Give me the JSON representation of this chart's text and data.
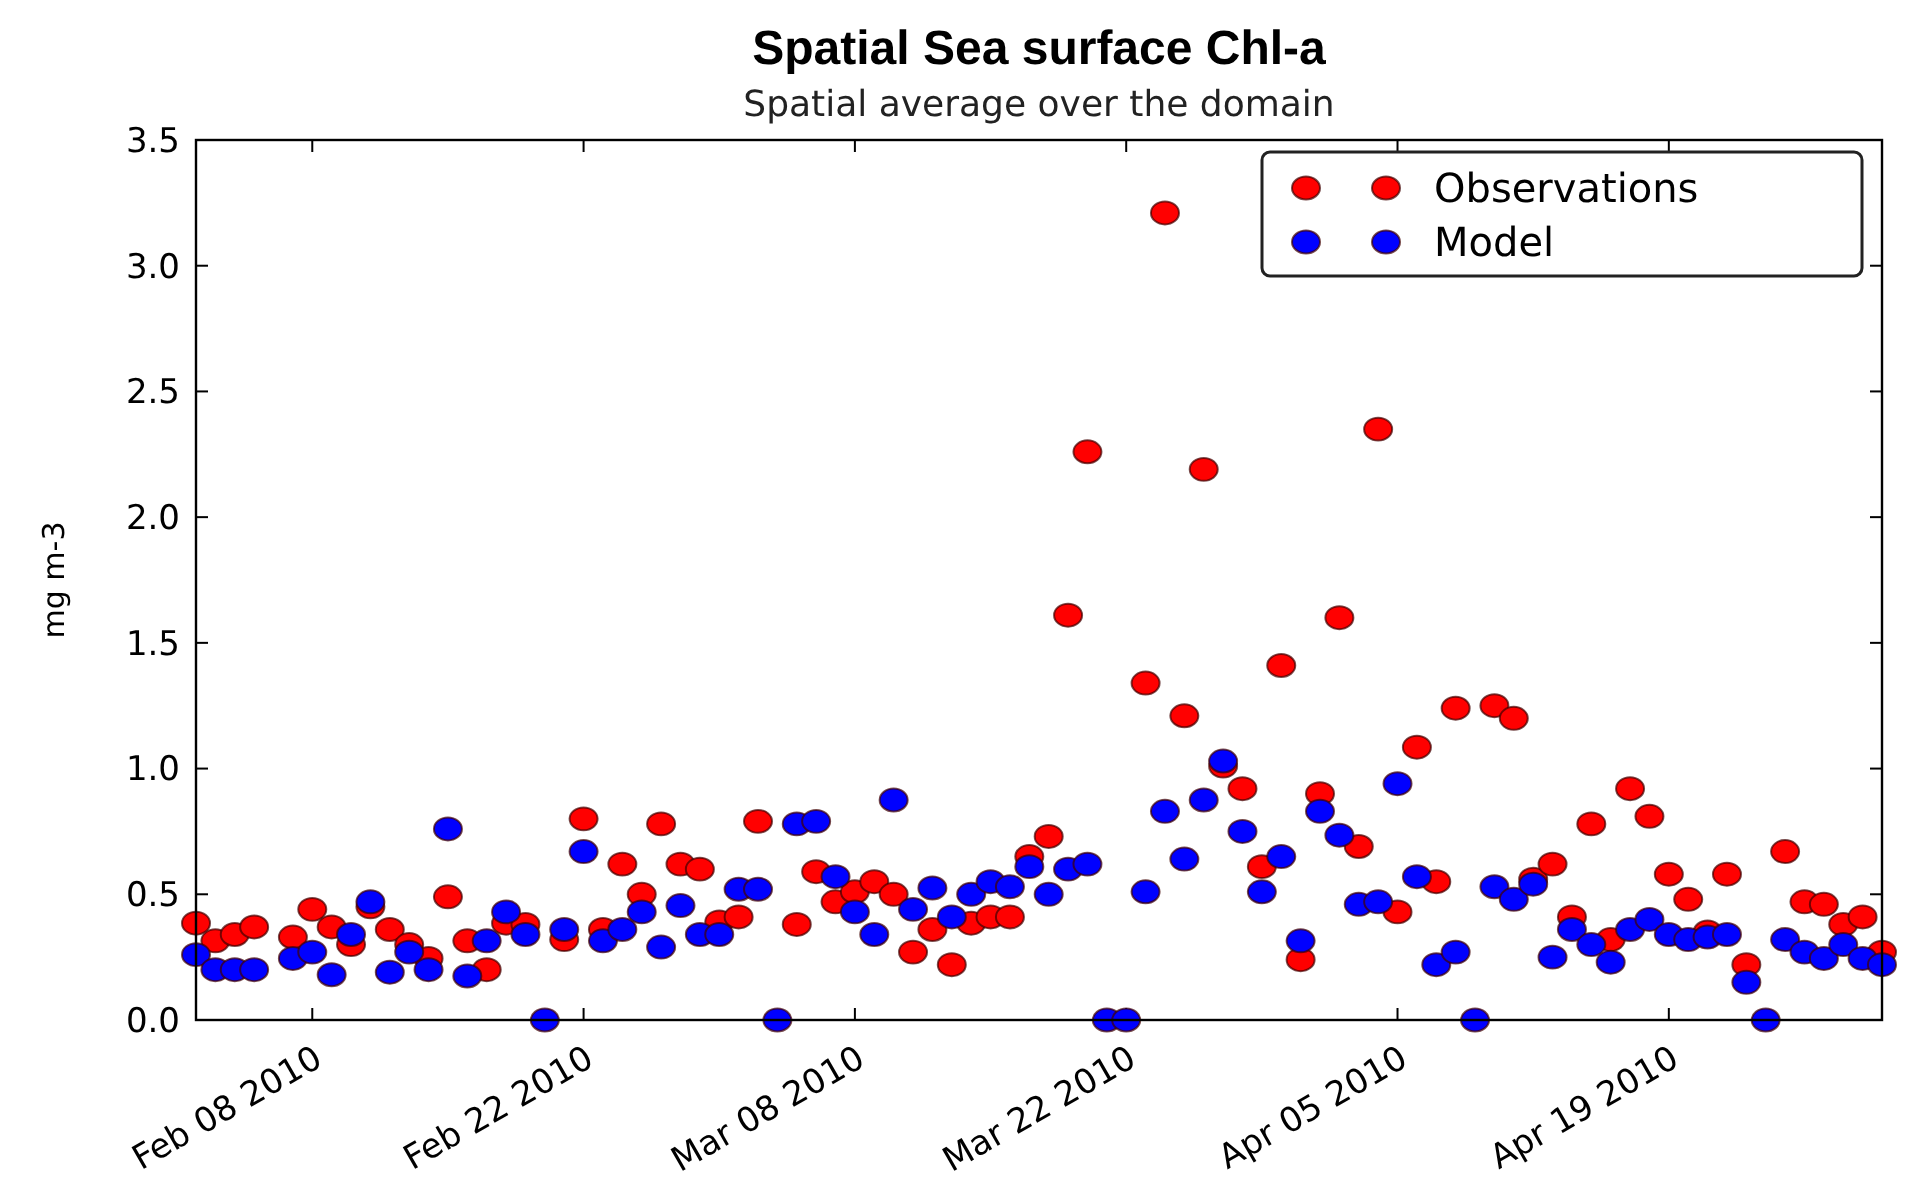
{
  "chart_data": {
    "type": "scatter",
    "title": "Spatial Sea surface Chl-a",
    "subtitle": "Spatial average over the domain",
    "ylabel": "mg m-3",
    "x": [
      "2010-02-02",
      "2010-02-03",
      "2010-02-04",
      "2010-02-05",
      "2010-02-07",
      "2010-02-08",
      "2010-02-09",
      "2010-02-10",
      "2010-02-11",
      "2010-02-12",
      "2010-02-13",
      "2010-02-14",
      "2010-02-15",
      "2010-02-16",
      "2010-02-17",
      "2010-02-18",
      "2010-02-19",
      "2010-02-20",
      "2010-02-21",
      "2010-02-22",
      "2010-02-23",
      "2010-02-24",
      "2010-02-25",
      "2010-02-26",
      "2010-02-27",
      "2010-02-28",
      "2010-03-01",
      "2010-03-02",
      "2010-03-03",
      "2010-03-04",
      "2010-03-05",
      "2010-03-06",
      "2010-03-07",
      "2010-03-08",
      "2010-03-09",
      "2010-03-10",
      "2010-03-11",
      "2010-03-12",
      "2010-03-13",
      "2010-03-14",
      "2010-03-15",
      "2010-03-16",
      "2010-03-17",
      "2010-03-18",
      "2010-03-19",
      "2010-03-20",
      "2010-03-21",
      "2010-03-22",
      "2010-03-23",
      "2010-03-24",
      "2010-03-25",
      "2010-03-26",
      "2010-03-27",
      "2010-03-28",
      "2010-03-29",
      "2010-03-30",
      "2010-03-31",
      "2010-04-01",
      "2010-04-02",
      "2010-04-03",
      "2010-04-04",
      "2010-04-05",
      "2010-04-06",
      "2010-04-07",
      "2010-04-08",
      "2010-04-09",
      "2010-04-10",
      "2010-04-11",
      "2010-04-12",
      "2010-04-13",
      "2010-04-14",
      "2010-04-15",
      "2010-04-16",
      "2010-04-17",
      "2010-04-18",
      "2010-04-19",
      "2010-04-20",
      "2010-04-21",
      "2010-04-22",
      "2010-04-23",
      "2010-04-24",
      "2010-04-25",
      "2010-04-26",
      "2010-04-27",
      "2010-04-28",
      "2010-04-29",
      "2010-04-30"
    ],
    "series": [
      {
        "name": "Observations",
        "color": "#ff0000",
        "values": [
          0.385,
          0.315,
          0.34,
          0.37,
          0.33,
          0.44,
          0.37,
          0.3,
          0.45,
          0.36,
          0.3,
          0.245,
          0.49,
          0.315,
          0.2,
          0.385,
          0.38,
          null,
          0.32,
          0.8,
          0.36,
          0.62,
          0.5,
          0.78,
          0.62,
          0.6,
          0.39,
          0.41,
          0.79,
          null,
          0.38,
          0.59,
          0.47,
          0.51,
          0.55,
          0.5,
          0.27,
          0.36,
          0.22,
          0.385,
          0.41,
          0.41,
          0.65,
          0.73,
          1.61,
          2.26,
          null,
          null,
          1.34,
          3.21,
          1.21,
          2.19,
          1.01,
          0.92,
          0.61,
          1.41,
          0.24,
          0.9,
          1.6,
          0.69,
          2.35,
          0.43,
          1.085,
          0.55,
          1.24,
          null,
          1.25,
          1.2,
          0.56,
          0.62,
          0.41,
          0.78,
          0.32,
          0.92,
          0.81,
          0.58,
          0.48,
          0.35,
          0.58,
          0.22,
          null,
          0.67,
          0.47,
          0.46,
          0.38,
          0.41,
          0.27
        ]
      },
      {
        "name": "Model",
        "color": "#0000ff",
        "values": [
          0.26,
          0.2,
          0.2,
          0.2,
          0.245,
          0.27,
          0.18,
          0.34,
          0.47,
          0.19,
          0.27,
          0.2,
          0.76,
          0.175,
          0.315,
          0.43,
          0.34,
          0,
          0.36,
          0.67,
          0.315,
          0.36,
          0.43,
          0.29,
          0.455,
          0.34,
          0.34,
          0.52,
          0.52,
          0,
          0.78,
          0.79,
          0.57,
          0.43,
          0.34,
          0.875,
          0.44,
          0.525,
          0.41,
          0.5,
          0.55,
          0.53,
          0.61,
          0.5,
          0.6,
          0.62,
          0,
          0,
          0.51,
          0.83,
          0.64,
          0.875,
          1.03,
          0.75,
          0.51,
          0.65,
          0.315,
          0.83,
          0.735,
          0.46,
          0.47,
          0.94,
          0.57,
          0.22,
          0.27,
          0,
          0.53,
          0.48,
          0.54,
          0.25,
          0.36,
          0.3,
          0.23,
          0.36,
          0.4,
          0.34,
          0.32,
          0.33,
          0.34,
          0.15,
          0,
          0.32,
          0.27,
          0.245,
          0.3,
          0.245,
          0.22
        ]
      }
    ],
    "xlim": [
      "2010-02-02",
      "2010-04-30"
    ],
    "xticks": [
      {
        "value": "2010-02-08",
        "label": "Feb 08 2010"
      },
      {
        "value": "2010-02-22",
        "label": "Feb 22 2010"
      },
      {
        "value": "2010-03-08",
        "label": "Mar 08 2010"
      },
      {
        "value": "2010-03-22",
        "label": "Mar 22 2010"
      },
      {
        "value": "2010-04-05",
        "label": "Apr 05 2010"
      },
      {
        "value": "2010-04-19",
        "label": "Apr 19 2010"
      }
    ],
    "ylim": [
      0,
      3.5
    ],
    "yticks": [
      {
        "value": 0,
        "label": "0.0"
      },
      {
        "value": 0.5,
        "label": "0.5"
      },
      {
        "value": 1,
        "label": "1.0"
      },
      {
        "value": 1.5,
        "label": "1.5"
      },
      {
        "value": 2,
        "label": "2.0"
      },
      {
        "value": 2.5,
        "label": "2.5"
      },
      {
        "value": 3,
        "label": "3.0"
      },
      {
        "value": 3.5,
        "label": "3.5"
      }
    ],
    "marker": "circle",
    "grid": false,
    "legend": "top right"
  }
}
